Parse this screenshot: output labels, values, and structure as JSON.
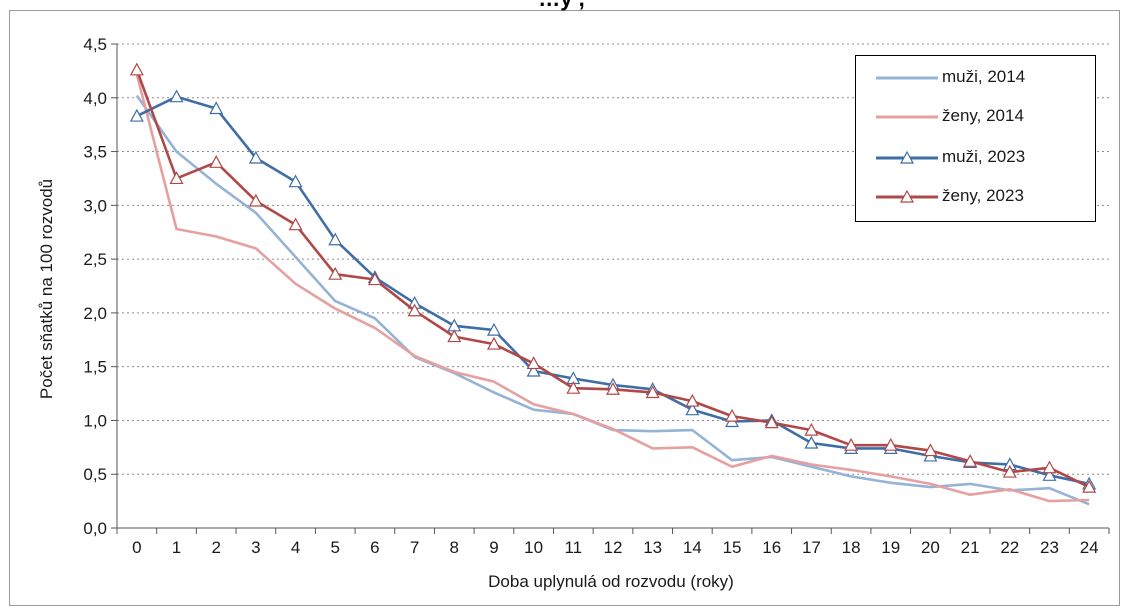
{
  "chart_data": {
    "type": "line",
    "title": "…y                 ,",
    "xlabel": "Doba uplynulá od rozvodu (roky)",
    "ylabel": "Počet sňatků na 100 rozvodů",
    "x": [
      0,
      1,
      2,
      3,
      4,
      5,
      6,
      7,
      8,
      9,
      10,
      11,
      12,
      13,
      14,
      15,
      16,
      17,
      18,
      19,
      20,
      21,
      22,
      23,
      24
    ],
    "ylim": [
      0,
      4.5
    ],
    "yticks": [
      "0,0",
      "0,5",
      "1,0",
      "1,5",
      "2,0",
      "2,5",
      "3,0",
      "3,5",
      "4,0",
      "4,5"
    ],
    "grid": true,
    "legend_position": "top-right",
    "series": [
      {
        "name": "muži, 2014",
        "color": "#95b3d7",
        "marker": "none",
        "values": [
          4.02,
          3.5,
          3.2,
          2.93,
          2.52,
          2.11,
          1.95,
          1.59,
          1.44,
          1.26,
          1.1,
          1.06,
          0.91,
          0.9,
          0.91,
          0.63,
          0.66,
          0.57,
          0.48,
          0.42,
          0.38,
          0.41,
          0.35,
          0.37,
          0.22
        ]
      },
      {
        "name": "ženy, 2014",
        "color": "#e6a0a0",
        "marker": "none",
        "values": [
          4.22,
          2.78,
          2.71,
          2.6,
          2.27,
          2.04,
          1.86,
          1.6,
          1.45,
          1.36,
          1.15,
          1.06,
          0.92,
          0.74,
          0.75,
          0.57,
          0.67,
          0.59,
          0.54,
          0.48,
          0.41,
          0.31,
          0.36,
          0.25,
          0.26
        ]
      },
      {
        "name": "muži, 2023",
        "color": "#3f6ea6",
        "marker": "triangle",
        "values": [
          3.83,
          4.01,
          3.9,
          3.44,
          3.22,
          2.68,
          2.33,
          2.09,
          1.88,
          1.84,
          1.46,
          1.39,
          1.33,
          1.29,
          1.1,
          0.99,
          1.0,
          0.79,
          0.74,
          0.74,
          0.67,
          0.61,
          0.59,
          0.49,
          0.41
        ]
      },
      {
        "name": "ženy, 2023",
        "color": "#b04848",
        "marker": "triangle",
        "values": [
          4.26,
          3.25,
          3.4,
          3.04,
          2.82,
          2.36,
          2.31,
          2.02,
          1.78,
          1.71,
          1.53,
          1.3,
          1.29,
          1.26,
          1.18,
          1.04,
          0.98,
          0.91,
          0.77,
          0.77,
          0.72,
          0.62,
          0.52,
          0.56,
          0.38
        ]
      }
    ]
  }
}
